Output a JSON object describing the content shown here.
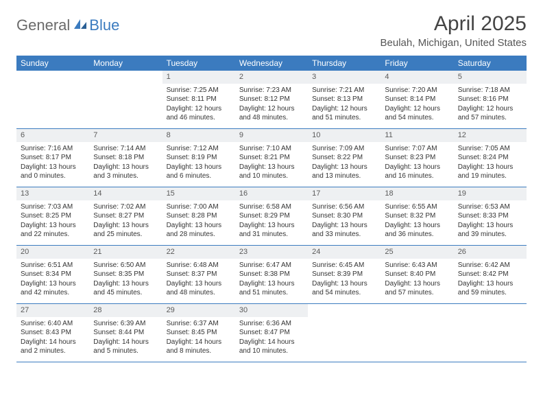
{
  "logo": {
    "general": "General",
    "blue": "Blue"
  },
  "title": "April 2025",
  "location": "Beulah, Michigan, United States",
  "colors": {
    "header_bg": "#3b7bbf",
    "daynum_bg": "#eef0f2",
    "border": "#3b7bbf"
  },
  "day_names": [
    "Sunday",
    "Monday",
    "Tuesday",
    "Wednesday",
    "Thursday",
    "Friday",
    "Saturday"
  ],
  "weeks": [
    [
      {
        "empty": true
      },
      {
        "empty": true
      },
      {
        "n": "1",
        "sr": "7:25 AM",
        "ss": "8:11 PM",
        "dl": "12 hours and 46 minutes."
      },
      {
        "n": "2",
        "sr": "7:23 AM",
        "ss": "8:12 PM",
        "dl": "12 hours and 48 minutes."
      },
      {
        "n": "3",
        "sr": "7:21 AM",
        "ss": "8:13 PM",
        "dl": "12 hours and 51 minutes."
      },
      {
        "n": "4",
        "sr": "7:20 AM",
        "ss": "8:14 PM",
        "dl": "12 hours and 54 minutes."
      },
      {
        "n": "5",
        "sr": "7:18 AM",
        "ss": "8:16 PM",
        "dl": "12 hours and 57 minutes."
      }
    ],
    [
      {
        "n": "6",
        "sr": "7:16 AM",
        "ss": "8:17 PM",
        "dl": "13 hours and 0 minutes."
      },
      {
        "n": "7",
        "sr": "7:14 AM",
        "ss": "8:18 PM",
        "dl": "13 hours and 3 minutes."
      },
      {
        "n": "8",
        "sr": "7:12 AM",
        "ss": "8:19 PM",
        "dl": "13 hours and 6 minutes."
      },
      {
        "n": "9",
        "sr": "7:10 AM",
        "ss": "8:21 PM",
        "dl": "13 hours and 10 minutes."
      },
      {
        "n": "10",
        "sr": "7:09 AM",
        "ss": "8:22 PM",
        "dl": "13 hours and 13 minutes."
      },
      {
        "n": "11",
        "sr": "7:07 AM",
        "ss": "8:23 PM",
        "dl": "13 hours and 16 minutes."
      },
      {
        "n": "12",
        "sr": "7:05 AM",
        "ss": "8:24 PM",
        "dl": "13 hours and 19 minutes."
      }
    ],
    [
      {
        "n": "13",
        "sr": "7:03 AM",
        "ss": "8:25 PM",
        "dl": "13 hours and 22 minutes."
      },
      {
        "n": "14",
        "sr": "7:02 AM",
        "ss": "8:27 PM",
        "dl": "13 hours and 25 minutes."
      },
      {
        "n": "15",
        "sr": "7:00 AM",
        "ss": "8:28 PM",
        "dl": "13 hours and 28 minutes."
      },
      {
        "n": "16",
        "sr": "6:58 AM",
        "ss": "8:29 PM",
        "dl": "13 hours and 31 minutes."
      },
      {
        "n": "17",
        "sr": "6:56 AM",
        "ss": "8:30 PM",
        "dl": "13 hours and 33 minutes."
      },
      {
        "n": "18",
        "sr": "6:55 AM",
        "ss": "8:32 PM",
        "dl": "13 hours and 36 minutes."
      },
      {
        "n": "19",
        "sr": "6:53 AM",
        "ss": "8:33 PM",
        "dl": "13 hours and 39 minutes."
      }
    ],
    [
      {
        "n": "20",
        "sr": "6:51 AM",
        "ss": "8:34 PM",
        "dl": "13 hours and 42 minutes."
      },
      {
        "n": "21",
        "sr": "6:50 AM",
        "ss": "8:35 PM",
        "dl": "13 hours and 45 minutes."
      },
      {
        "n": "22",
        "sr": "6:48 AM",
        "ss": "8:37 PM",
        "dl": "13 hours and 48 minutes."
      },
      {
        "n": "23",
        "sr": "6:47 AM",
        "ss": "8:38 PM",
        "dl": "13 hours and 51 minutes."
      },
      {
        "n": "24",
        "sr": "6:45 AM",
        "ss": "8:39 PM",
        "dl": "13 hours and 54 minutes."
      },
      {
        "n": "25",
        "sr": "6:43 AM",
        "ss": "8:40 PM",
        "dl": "13 hours and 57 minutes."
      },
      {
        "n": "26",
        "sr": "6:42 AM",
        "ss": "8:42 PM",
        "dl": "13 hours and 59 minutes."
      }
    ],
    [
      {
        "n": "27",
        "sr": "6:40 AM",
        "ss": "8:43 PM",
        "dl": "14 hours and 2 minutes."
      },
      {
        "n": "28",
        "sr": "6:39 AM",
        "ss": "8:44 PM",
        "dl": "14 hours and 5 minutes."
      },
      {
        "n": "29",
        "sr": "6:37 AM",
        "ss": "8:45 PM",
        "dl": "14 hours and 8 minutes."
      },
      {
        "n": "30",
        "sr": "6:36 AM",
        "ss": "8:47 PM",
        "dl": "14 hours and 10 minutes."
      },
      {
        "empty": true
      },
      {
        "empty": true
      },
      {
        "empty": true
      }
    ]
  ],
  "labels": {
    "sunrise": "Sunrise: ",
    "sunset": "Sunset: ",
    "daylight": "Daylight: "
  }
}
